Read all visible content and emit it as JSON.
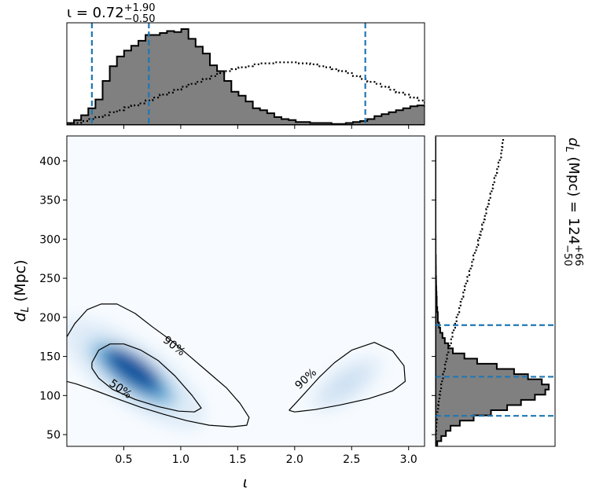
{
  "chart_data": [
    {
      "type": "heatmap",
      "panel": "joint",
      "xlabel": "ι",
      "ylabel": "d_L (Mpc)",
      "xlim": [
        0.0,
        3.14
      ],
      "ylim": [
        35,
        432
      ],
      "xticks": [
        0.5,
        1.0,
        1.5,
        2.0,
        2.5,
        3.0
      ],
      "xtick_labels": [
        "0.5",
        "1.0",
        "1.5",
        "2.0",
        "2.5",
        "3.0"
      ],
      "yticks": [
        50,
        100,
        150,
        200,
        250,
        300,
        350,
        400
      ],
      "ytick_labels": [
        "50",
        "100",
        "150",
        "200",
        "250",
        "300",
        "350",
        "400"
      ],
      "colormap": "Blues",
      "density_modes": [
        {
          "x": 0.58,
          "y": 128,
          "peak": 1.0
        },
        {
          "x": 2.45,
          "y": 115,
          "peak": 0.12
        }
      ],
      "contours": [
        {
          "level": "50%",
          "label_at": [
            0.47,
            108
          ],
          "label_angle_deg": 35,
          "path": [
            [
              0.22,
              142
            ],
            [
              0.28,
              158
            ],
            [
              0.38,
              166
            ],
            [
              0.5,
              166
            ],
            [
              0.65,
              158
            ],
            [
              0.8,
              145
            ],
            [
              0.95,
              125
            ],
            [
              1.1,
              100
            ],
            [
              1.18,
              84
            ],
            [
              1.12,
              79
            ],
            [
              0.98,
              80
            ],
            [
              0.8,
              86
            ],
            [
              0.6,
              95
            ],
            [
              0.4,
              108
            ],
            [
              0.28,
              122
            ],
            [
              0.22,
              135
            ],
            [
              0.22,
              142
            ]
          ]
        },
        {
          "level": "90%",
          "label_at": [
            0.94,
            163
          ],
          "label_angle_deg": 38,
          "path": [
            [
              0.0,
              175
            ],
            [
              0.07,
              192
            ],
            [
              0.18,
              210
            ],
            [
              0.3,
              217
            ],
            [
              0.44,
              217
            ],
            [
              0.6,
              205
            ],
            [
              0.75,
              188
            ],
            [
              0.92,
              170
            ],
            [
              1.08,
              150
            ],
            [
              1.24,
              130
            ],
            [
              1.4,
              110
            ],
            [
              1.52,
              90
            ],
            [
              1.6,
              72
            ],
            [
              1.58,
              62
            ],
            [
              1.45,
              60
            ],
            [
              1.25,
              62
            ],
            [
              1.05,
              68
            ],
            [
              0.85,
              76
            ],
            [
              0.65,
              85
            ],
            [
              0.42,
              97
            ],
            [
              0.22,
              108
            ],
            [
              0.08,
              115
            ],
            [
              0.0,
              118
            ]
          ]
        },
        {
          "level": "90%",
          "label_at": [
            2.1,
            121
          ],
          "label_angle_deg": -43,
          "path": [
            [
              1.95,
              81
            ],
            [
              2.02,
              92
            ],
            [
              2.12,
              108
            ],
            [
              2.22,
              124
            ],
            [
              2.35,
              142
            ],
            [
              2.5,
              158
            ],
            [
              2.7,
              168
            ],
            [
              2.86,
              157
            ],
            [
              2.96,
              138
            ],
            [
              2.97,
              118
            ],
            [
              2.86,
              106
            ],
            [
              2.65,
              96
            ],
            [
              2.4,
              88
            ],
            [
              2.18,
              82
            ],
            [
              2.0,
              79
            ],
            [
              1.95,
              81
            ]
          ]
        }
      ]
    },
    {
      "type": "bar",
      "panel": "top-marginal",
      "title": "ι = 0.72",
      "title_sup": "+1.90",
      "title_sub": "−0.50",
      "x_bin_edges_start": 0.0,
      "bin_width": 0.0628,
      "posterior": [
        0.02,
        0.05,
        0.1,
        0.17,
        0.26,
        0.45,
        0.6,
        0.7,
        0.76,
        0.81,
        0.86,
        0.92,
        0.92,
        0.94,
        0.96,
        0.95,
        0.98,
        0.88,
        0.8,
        0.73,
        0.61,
        0.55,
        0.45,
        0.34,
        0.3,
        0.24,
        0.17,
        0.15,
        0.12,
        0.08,
        0.06,
        0.05,
        0.03,
        0.03,
        0.02,
        0.02,
        0.02,
        0.01,
        0.01,
        0.02,
        0.03,
        0.04,
        0.06,
        0.09,
        0.11,
        0.13,
        0.15,
        0.17,
        0.19,
        0.2,
        0.19,
        0.18,
        0.17,
        0.16,
        0.15,
        0.14,
        0.12,
        0.08,
        0.05,
        0.02
      ],
      "prior": [
        0.01,
        0.02,
        0.04,
        0.06,
        0.08,
        0.1,
        0.13,
        0.15,
        0.18,
        0.2,
        0.22,
        0.25,
        0.28,
        0.31,
        0.33,
        0.36,
        0.39,
        0.42,
        0.44,
        0.47,
        0.5,
        0.53,
        0.55,
        0.57,
        0.59,
        0.6,
        0.62,
        0.63,
        0.63,
        0.64,
        0.64,
        0.64,
        0.63,
        0.63,
        0.62,
        0.6,
        0.59,
        0.57,
        0.55,
        0.53,
        0.5,
        0.47,
        0.44,
        0.42,
        0.39,
        0.36,
        0.33,
        0.31,
        0.28,
        0.25,
        0.22,
        0.2,
        0.18,
        0.15,
        0.13,
        0.1,
        0.08,
        0.06,
        0.04,
        0.02
      ],
      "quantile_lines": [
        0.22,
        0.72,
        2.62
      ]
    },
    {
      "type": "bar",
      "panel": "right-marginal",
      "orientation": "horizontal",
      "title": "d_L (Mpc) = 124",
      "title_sup": "+66",
      "title_sub": "−50",
      "y_bin_edges_start": 35,
      "bin_width": 6.6,
      "posterior": [
        0.015,
        0.05,
        0.09,
        0.13,
        0.21,
        0.33,
        0.48,
        0.62,
        0.74,
        0.86,
        0.95,
        0.98,
        0.92,
        0.8,
        0.68,
        0.53,
        0.36,
        0.25,
        0.15,
        0.11,
        0.08,
        0.06,
        0.04,
        0.03,
        0.02,
        0.02,
        0.015,
        0.01,
        0.01,
        0.008,
        0.006,
        0.005,
        0.004,
        0.003,
        0.003,
        0.002,
        0.002,
        0.001,
        0.001,
        0.001,
        0.001,
        0.0,
        0.0,
        0.0,
        0.0,
        0.0,
        0.0,
        0.0,
        0.0,
        0.0,
        0.0,
        0.0,
        0.0,
        0.0,
        0.0,
        0.0,
        0.0,
        0.0,
        0.0,
        0.0
      ],
      "prior": [
        0.0,
        0.003,
        0.006,
        0.01,
        0.015,
        0.02,
        0.028,
        0.037,
        0.047,
        0.058,
        0.07,
        0.083,
        0.097,
        0.11,
        0.125,
        0.14,
        0.155,
        0.17,
        0.19,
        0.21,
        0.23,
        0.25,
        0.27,
        0.29,
        0.31,
        0.33,
        0.35,
        0.37,
        0.39,
        0.41,
        0.43,
        0.45,
        0.47,
        0.5,
        0.52,
        0.54,
        0.56,
        0.58,
        0.61,
        0.63,
        0.65,
        0.67,
        0.69,
        0.71,
        0.73,
        0.75,
        0.77,
        0.79,
        0.81,
        0.83,
        0.85,
        0.87,
        0.89,
        0.91,
        0.93,
        0.95,
        0.97,
        0.98,
        0.99,
        1.0
      ],
      "quantile_lines": [
        74,
        124,
        190
      ]
    }
  ]
}
